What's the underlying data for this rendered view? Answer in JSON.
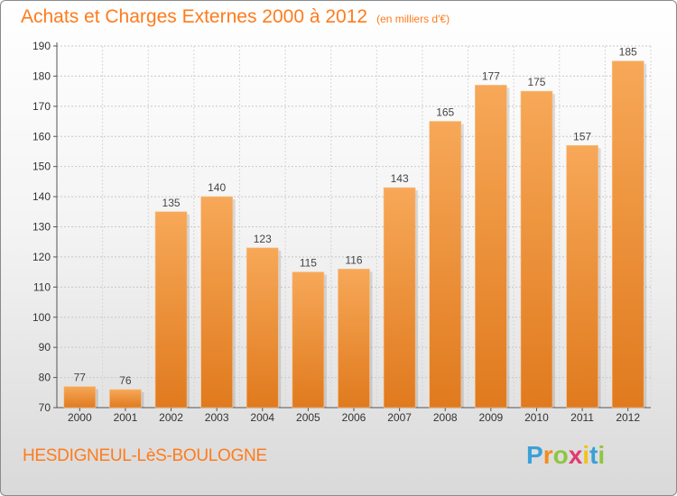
{
  "chart_data": {
    "type": "bar",
    "title": "Achats et Charges Externes 2000 à 2012",
    "subtitle": "(en milliers d'€)",
    "categories": [
      "2000",
      "2001",
      "2002",
      "2003",
      "2004",
      "2005",
      "2006",
      "2007",
      "2008",
      "2009",
      "2010",
      "2011",
      "2012"
    ],
    "values": [
      77,
      76,
      135,
      140,
      123,
      115,
      116,
      143,
      165,
      177,
      175,
      157,
      185
    ],
    "ylim": [
      70,
      190
    ],
    "yticks": [
      70,
      80,
      90,
      100,
      110,
      120,
      130,
      140,
      150,
      160,
      170,
      180,
      190
    ],
    "xlabel": "",
    "ylabel": "",
    "grid": true,
    "data_labels": true,
    "colors": {
      "bar_light": "#f7a858",
      "bar_dark": "#e07a1e",
      "accent": "#ff7b1c"
    }
  },
  "footer": {
    "commune": "HESDIGNEUL-LèS-BOULOGNE",
    "brand_letters": [
      "P",
      "r",
      "o",
      "x",
      "i",
      "t",
      "i"
    ],
    "brand_colors": [
      "#3aa0d8",
      "#f28c1e",
      "#8dc63f",
      "#e23a6e",
      "#f2c21e",
      "#3aa0d8",
      "#8dc63f"
    ]
  }
}
